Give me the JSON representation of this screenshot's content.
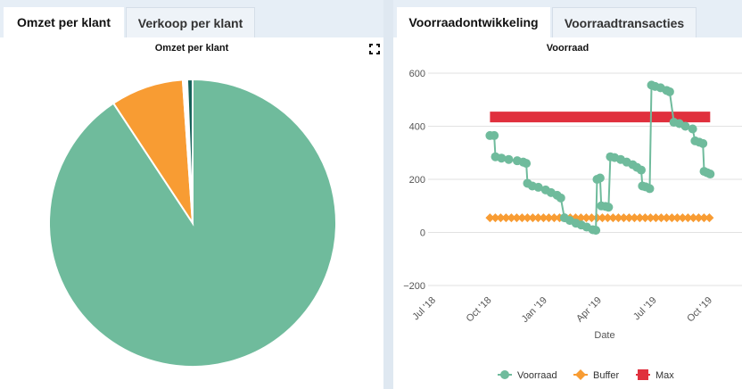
{
  "left": {
    "tabs": [
      {
        "label": "Omzet per klant"
      },
      {
        "label": "Verkoop per klant"
      }
    ],
    "chart_title": "Omzet per klant",
    "fullscreen_icon": "fullscreen-icon"
  },
  "right": {
    "tabs": [
      {
        "label": "Voorraadontwikkeling"
      },
      {
        "label": "Voorraadtransacties"
      }
    ],
    "chart_title": "Voorraad"
  },
  "colors": {
    "voorraad": "#6fbb9c",
    "buffer": "#f89c33",
    "max": "#e0303d",
    "dark_slice": "#17625a"
  },
  "chart_data": [
    {
      "type": "pie",
      "title": "Omzet per klant",
      "slices": [
        {
          "name": "",
          "value": 90.7,
          "color": "#6fbb9c"
        },
        {
          "name": "",
          "value": 8.2,
          "color": "#f89c33"
        },
        {
          "name": "",
          "value": 0.5,
          "color": "#ffffff"
        },
        {
          "name": "",
          "value": 0.6,
          "color": "#17625a"
        }
      ]
    },
    {
      "type": "line",
      "title": "Voorraad",
      "xlabel": "Date",
      "ylabel": "",
      "ylim": [
        -200,
        600
      ],
      "yticks": [
        -200,
        0,
        200,
        400,
        600
      ],
      "xticks": [
        "Jul '18",
        "Oct '18",
        "Jan '19",
        "Apr '19",
        "Jul '19",
        "Oct '19"
      ],
      "legend_position": "bottom",
      "series": [
        {
          "name": "Voorraad",
          "color": "#6fbb9c",
          "points": [
            [
              "2018-10-01",
              365
            ],
            [
              "2018-10-08",
              365
            ],
            [
              "2018-10-10",
              285
            ],
            [
              "2018-10-20",
              280
            ],
            [
              "2018-11-01",
              275
            ],
            [
              "2018-11-15",
              270
            ],
            [
              "2018-11-25",
              265
            ],
            [
              "2018-11-30",
              260
            ],
            [
              "2018-12-02",
              185
            ],
            [
              "2018-12-10",
              175
            ],
            [
              "2018-12-20",
              170
            ],
            [
              "2019-01-01",
              160
            ],
            [
              "2019-01-10",
              150
            ],
            [
              "2019-01-20",
              140
            ],
            [
              "2019-01-26",
              130
            ],
            [
              "2019-02-01",
              55
            ],
            [
              "2019-02-10",
              45
            ],
            [
              "2019-02-20",
              35
            ],
            [
              "2019-03-01",
              28
            ],
            [
              "2019-03-10",
              20
            ],
            [
              "2019-03-20",
              10
            ],
            [
              "2019-03-25",
              8
            ],
            [
              "2019-03-27",
              200
            ],
            [
              "2019-04-01",
              205
            ],
            [
              "2019-04-03",
              100
            ],
            [
              "2019-04-10",
              98
            ],
            [
              "2019-04-15",
              95
            ],
            [
              "2019-04-18",
              285
            ],
            [
              "2019-04-25",
              282
            ],
            [
              "2019-05-05",
              275
            ],
            [
              "2019-05-15",
              265
            ],
            [
              "2019-05-25",
              255
            ],
            [
              "2019-06-01",
              245
            ],
            [
              "2019-06-08",
              235
            ],
            [
              "2019-06-10",
              175
            ],
            [
              "2019-06-15",
              172
            ],
            [
              "2019-06-22",
              165
            ],
            [
              "2019-06-25",
              555
            ],
            [
              "2019-07-01",
              550
            ],
            [
              "2019-07-10",
              545
            ],
            [
              "2019-07-20",
              535
            ],
            [
              "2019-07-25",
              530
            ],
            [
              "2019-08-01",
              415
            ],
            [
              "2019-08-10",
              410
            ],
            [
              "2019-08-20",
              400
            ],
            [
              "2019-09-01",
              390
            ],
            [
              "2019-09-05",
              345
            ],
            [
              "2019-09-12",
              340
            ],
            [
              "2019-09-18",
              335
            ],
            [
              "2019-09-20",
              230
            ],
            [
              "2019-09-25",
              225
            ],
            [
              "2019-09-30",
              220
            ]
          ]
        },
        {
          "name": "Buffer",
          "color": "#f89c33",
          "points": [
            [
              "2018-10-01",
              55
            ],
            [
              "2019-09-30",
              55
            ]
          ]
        },
        {
          "name": "Max",
          "color": "#e0303d",
          "points": [
            [
              "2018-10-01",
              435
            ],
            [
              "2019-09-30",
              435
            ]
          ]
        }
      ]
    }
  ]
}
